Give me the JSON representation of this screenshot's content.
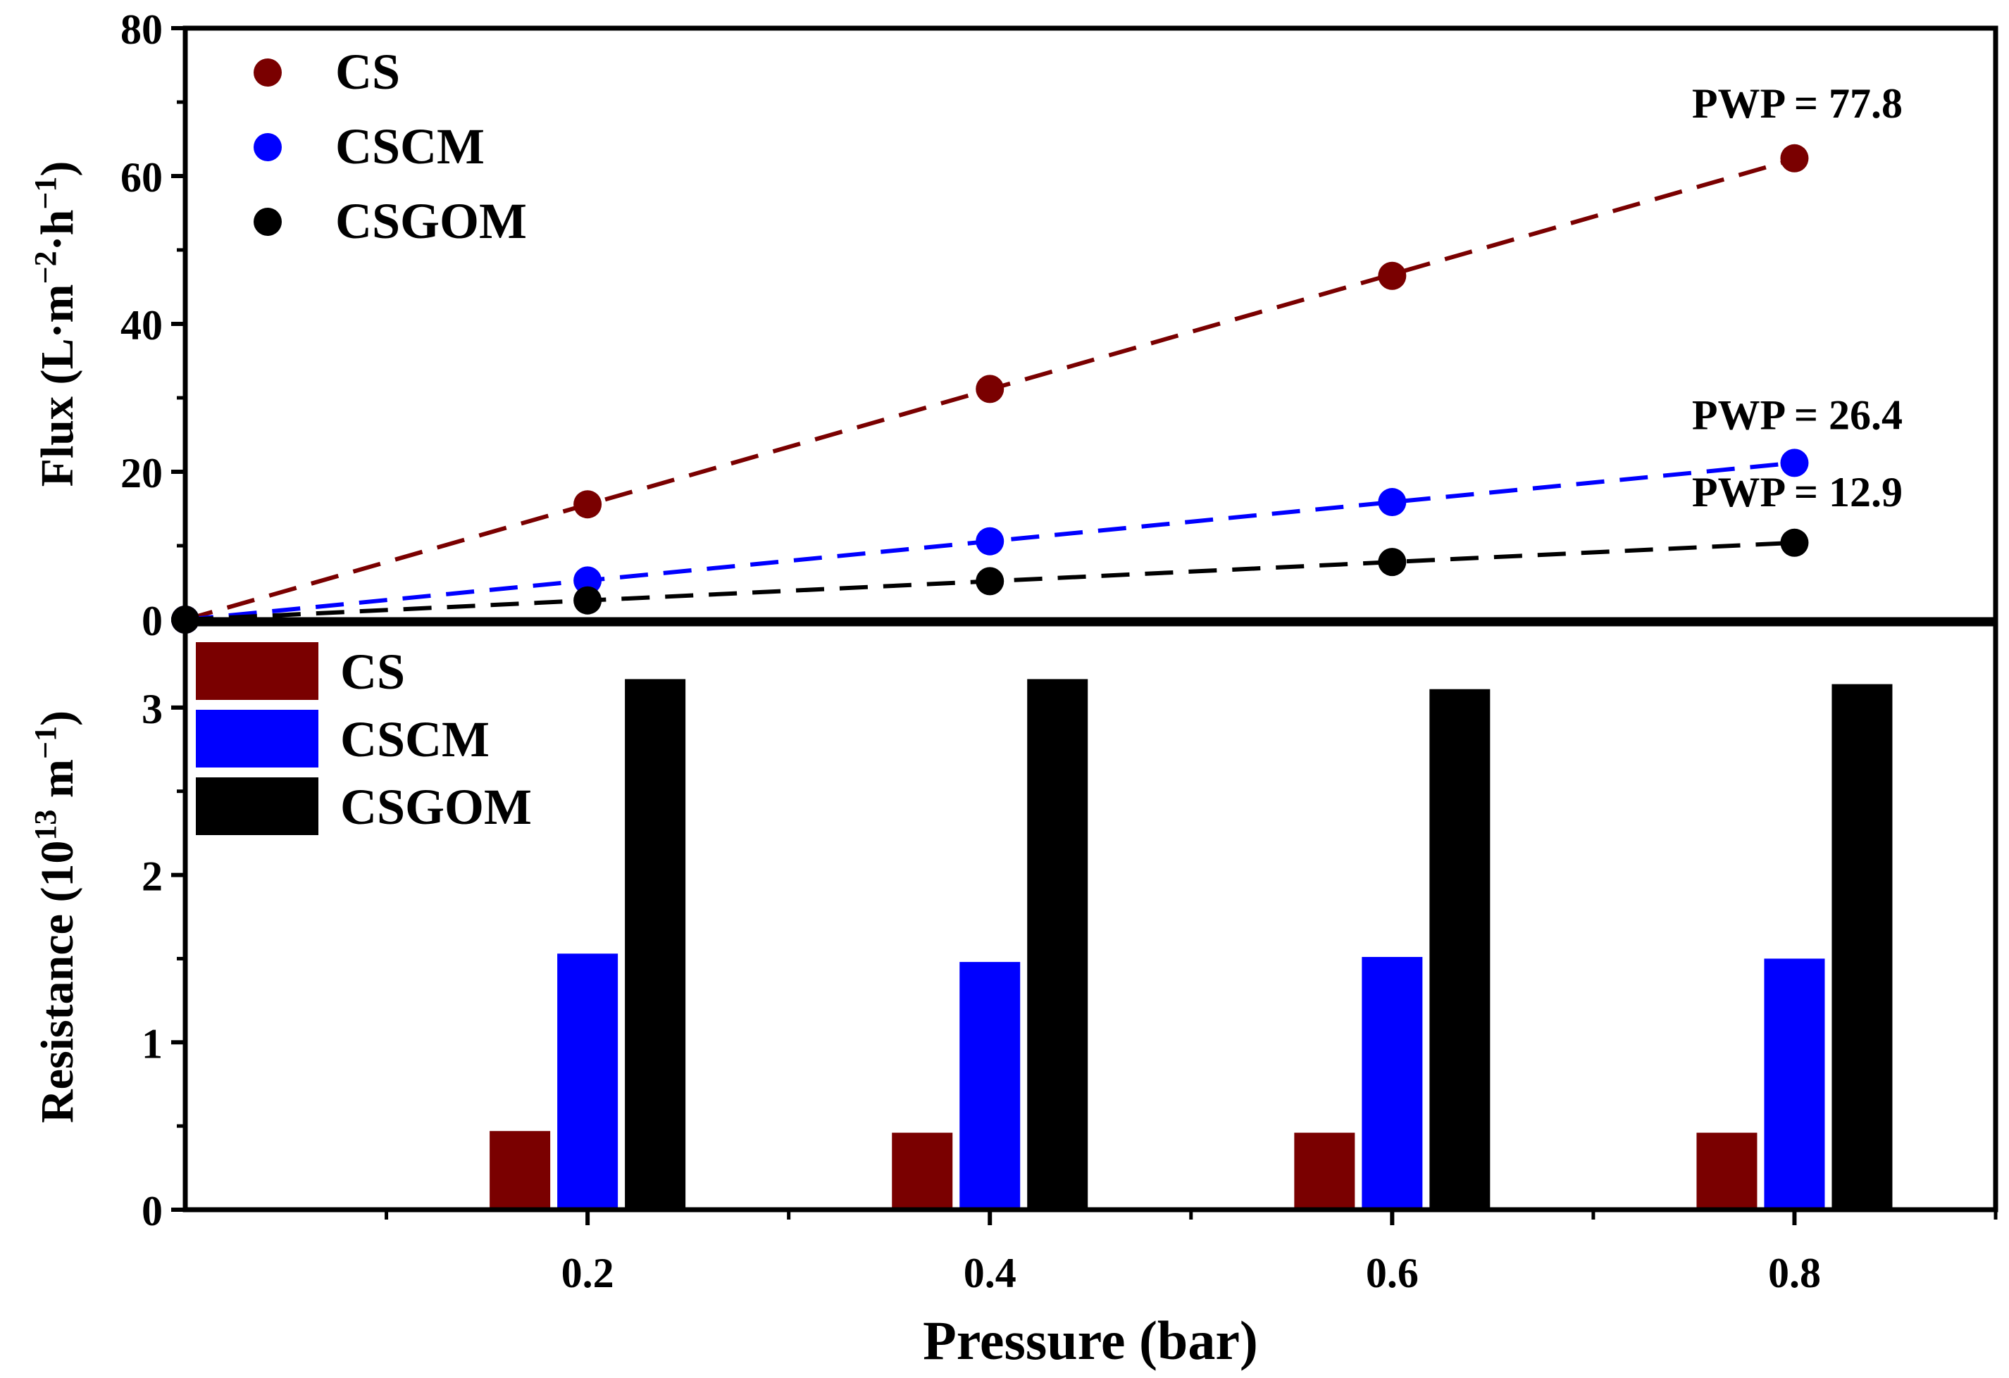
{
  "colors": {
    "CS": "#7a0000",
    "CSCM": "#0000ff",
    "CSGOM": "#000000"
  },
  "chart_data": [
    {
      "type": "scatter",
      "panel": "top",
      "xlabel": "Pressure (bar)",
      "ylabel": {
        "base": "Flux (L·m",
        "sup1": "−2",
        "mid": "·h",
        "sup2": "−1",
        "end": ")"
      },
      "xlim": [
        0,
        0.9
      ],
      "ylim": [
        0,
        80
      ],
      "yticks": [
        "0",
        "20",
        "40",
        "60",
        "80"
      ],
      "series": [
        {
          "name": "CS",
          "x": [
            0,
            0.2,
            0.4,
            0.6,
            0.8
          ],
          "values": [
            0,
            15.6,
            31.2,
            46.5,
            62.4
          ],
          "fit": "dashed"
        },
        {
          "name": "CSCM",
          "x": [
            0,
            0.2,
            0.4,
            0.6,
            0.8
          ],
          "values": [
            0,
            5.3,
            10.6,
            15.9,
            21.2
          ],
          "fit": "dashed"
        },
        {
          "name": "CSGOM",
          "x": [
            0,
            0.2,
            0.4,
            0.6,
            0.8
          ],
          "values": [
            0,
            2.6,
            5.2,
            7.8,
            10.4
          ],
          "fit": "dashed"
        }
      ],
      "legend": {
        "placement": "top-left",
        "entries": [
          "CS",
          "CSCM",
          "CSGOM"
        ]
      },
      "annotations": [
        {
          "series": "CS",
          "text": "PWP = 77.8"
        },
        {
          "series": "CSCM",
          "text": "PWP = 26.4"
        },
        {
          "series": "CSGOM",
          "text": "PWP = 12.9"
        }
      ]
    },
    {
      "type": "bar",
      "panel": "bottom",
      "xlabel": "Pressure (bar)",
      "ylabel": {
        "base": "Resistance (10",
        "sup1": "13",
        "mid": " m",
        "sup2": "−1",
        "end": ")"
      },
      "categories": [
        "0.2",
        "0.4",
        "0.6",
        "0.8"
      ],
      "x": [
        0.2,
        0.4,
        0.6,
        0.8
      ],
      "xlim": [
        0,
        0.9
      ],
      "ylim": [
        0,
        3.5
      ],
      "yticks": [
        "0",
        "1",
        "2",
        "3"
      ],
      "series": [
        {
          "name": "CS",
          "values": [
            0.47,
            0.46,
            0.46,
            0.46
          ]
        },
        {
          "name": "CSCM",
          "values": [
            1.53,
            1.48,
            1.51,
            1.5
          ]
        },
        {
          "name": "CSGOM",
          "values": [
            3.17,
            3.17,
            3.11,
            3.14
          ]
        }
      ],
      "legend": {
        "placement": "top-left",
        "entries": [
          "CS",
          "CSCM",
          "CSGOM"
        ]
      }
    }
  ]
}
